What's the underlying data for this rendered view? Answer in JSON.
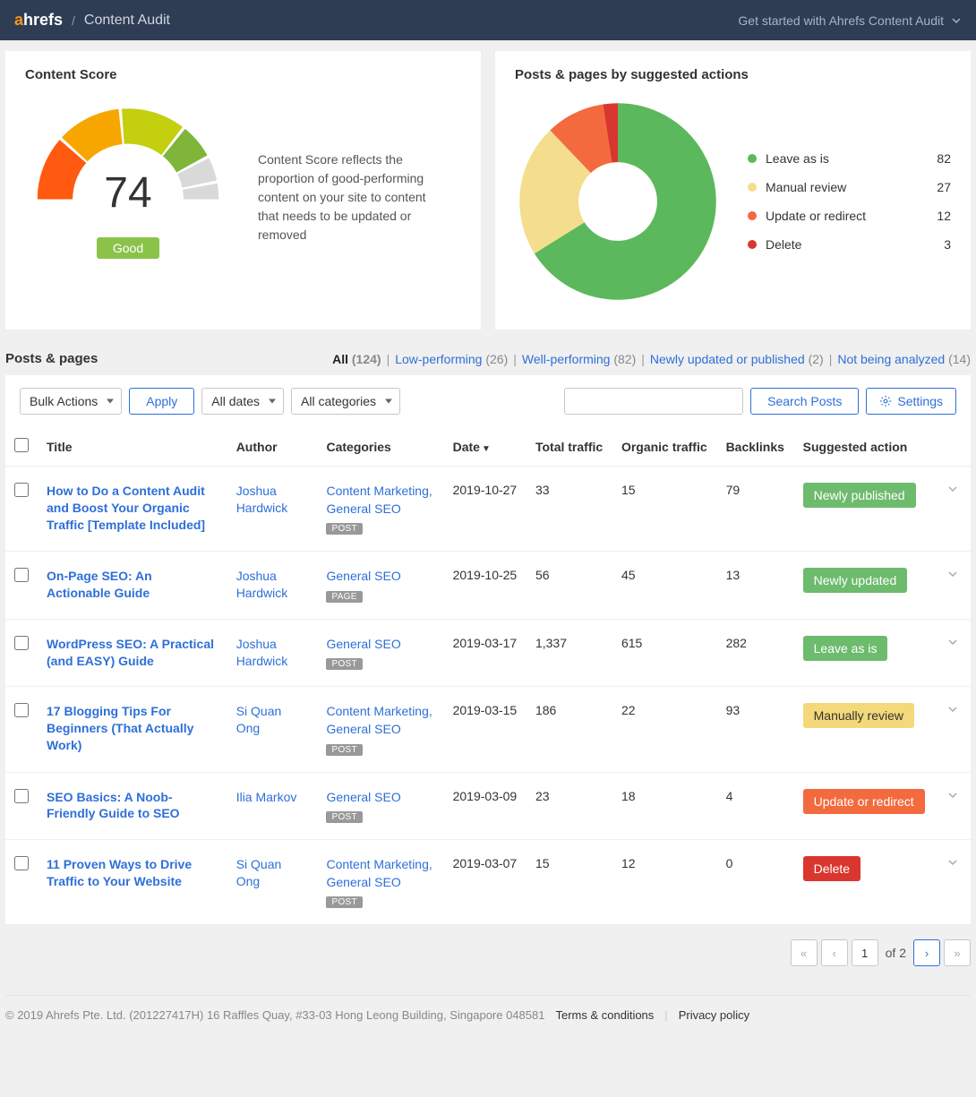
{
  "topbar": {
    "logo_a": "a",
    "logo_rest": "hrefs",
    "page": "Content Audit",
    "right_label": "Get started with Ahrefs Content Audit"
  },
  "score_card": {
    "title": "Content Score",
    "value": "74",
    "badge": "Good",
    "badge_color": "#8bc34a",
    "description": "Content Score reflects the proportion of good-performing content on your site to content that needs to be updated or removed",
    "gauge": {
      "segments": [
        {
          "start": 180,
          "end": 221,
          "color": "#ff5a10"
        },
        {
          "start": 223,
          "end": 264,
          "color": "#f7a600"
        },
        {
          "start": 266,
          "end": 307,
          "color": "#c4cf0f"
        },
        {
          "start": 309,
          "end": 331,
          "color": "#7fb63a"
        },
        {
          "start": 333,
          "end": 348,
          "color": "#d9d9d9"
        },
        {
          "start": 350,
          "end": 360,
          "color": "#d9d9d9"
        }
      ],
      "inner": 55,
      "outer": 90
    }
  },
  "donut_card": {
    "title": "Posts & pages by suggested actions",
    "slices": [
      {
        "label": "Leave as is",
        "value": 82,
        "color": "#5cb85c"
      },
      {
        "label": "Manual review",
        "value": 27,
        "color": "#f5dd8e"
      },
      {
        "label": "Update or redirect",
        "value": 12,
        "color": "#f36a3e"
      },
      {
        "label": "Delete",
        "value": 3,
        "color": "#d9362f"
      }
    ],
    "inner": 42,
    "outer": 105
  },
  "section": {
    "title": "Posts & pages",
    "filters": [
      {
        "label": "All",
        "count": "(124)",
        "active": true
      },
      {
        "label": "Low-performing",
        "count": "(26)"
      },
      {
        "label": "Well-performing",
        "count": "(82)"
      },
      {
        "label": "Newly updated or published",
        "count": "(2)"
      },
      {
        "label": "Not being analyzed",
        "count": "(14)"
      }
    ]
  },
  "toolbar": {
    "bulk": "Bulk Actions",
    "apply": "Apply",
    "dates": "All dates",
    "categories": "All categories",
    "search_btn": "Search Posts",
    "settings": "Settings"
  },
  "table": {
    "headers": {
      "title": "Title",
      "author": "Author",
      "categories": "Categories",
      "date": "Date",
      "total": "Total traffic",
      "organic": "Organic traffic",
      "backlinks": "Backlinks",
      "action": "Suggested action"
    },
    "rows": [
      {
        "title": "How to Do a Content Audit and Boost Your Organic Traffic [Template Included]",
        "author": "Joshua Hardwick",
        "cats": "Content Marketing, General SEO",
        "type": "POST",
        "date": "2019-10-27",
        "total": "33",
        "organic": "15",
        "backlinks": "79",
        "action": "Newly published",
        "action_color": "#6dbb6d"
      },
      {
        "title": "On-Page SEO: An Actionable Guide",
        "author": "Joshua Hardwick",
        "cats": "General SEO",
        "type": "PAGE",
        "date": "2019-10-25",
        "total": "56",
        "organic": "45",
        "backlinks": "13",
        "action": "Newly updated",
        "action_color": "#6dbb6d"
      },
      {
        "title": "WordPress SEO: A Practical (and EASY) Guide",
        "author": "Joshua Hardwick",
        "cats": "General SEO",
        "type": "POST",
        "date": "2019-03-17",
        "total": "1,337",
        "organic": "615",
        "backlinks": "282",
        "action": "Leave as is",
        "action_color": "#6dbb6d"
      },
      {
        "title": "17 Blogging Tips For Beginners (That Actually Work)",
        "author": "Si Quan Ong",
        "cats": "Content Marketing, General SEO",
        "type": "POST",
        "date": "2019-03-15",
        "total": "186",
        "organic": "22",
        "backlinks": "93",
        "action": "Manually review",
        "action_color": "#f3d97a",
        "text_color": "#333"
      },
      {
        "title": "SEO Basics: A Noob-Friendly Guide to SEO",
        "author": "Ilia Markov",
        "cats": "General SEO",
        "type": "POST",
        "date": "2019-03-09",
        "total": "23",
        "organic": "18",
        "backlinks": "4",
        "action": "Update or redirect",
        "action_color": "#f36a3e"
      },
      {
        "title": "11 Proven Ways to Drive Traffic to Your Website",
        "author": "Si Quan Ong",
        "cats": "Content Marketing, General SEO",
        "type": "POST",
        "date": "2019-03-07",
        "total": "15",
        "organic": "12",
        "backlinks": "0",
        "action": "Delete",
        "action_color": "#d9362f"
      }
    ]
  },
  "pagination": {
    "current": "1",
    "of": "of 2"
  },
  "footer": {
    "copyright": "© 2019 Ahrefs Pte. Ltd. (201227417H) 16 Raffles Quay, #33-03 Hong Leong Building, Singapore 048581",
    "terms": "Terms & conditions",
    "privacy": "Privacy policy"
  }
}
